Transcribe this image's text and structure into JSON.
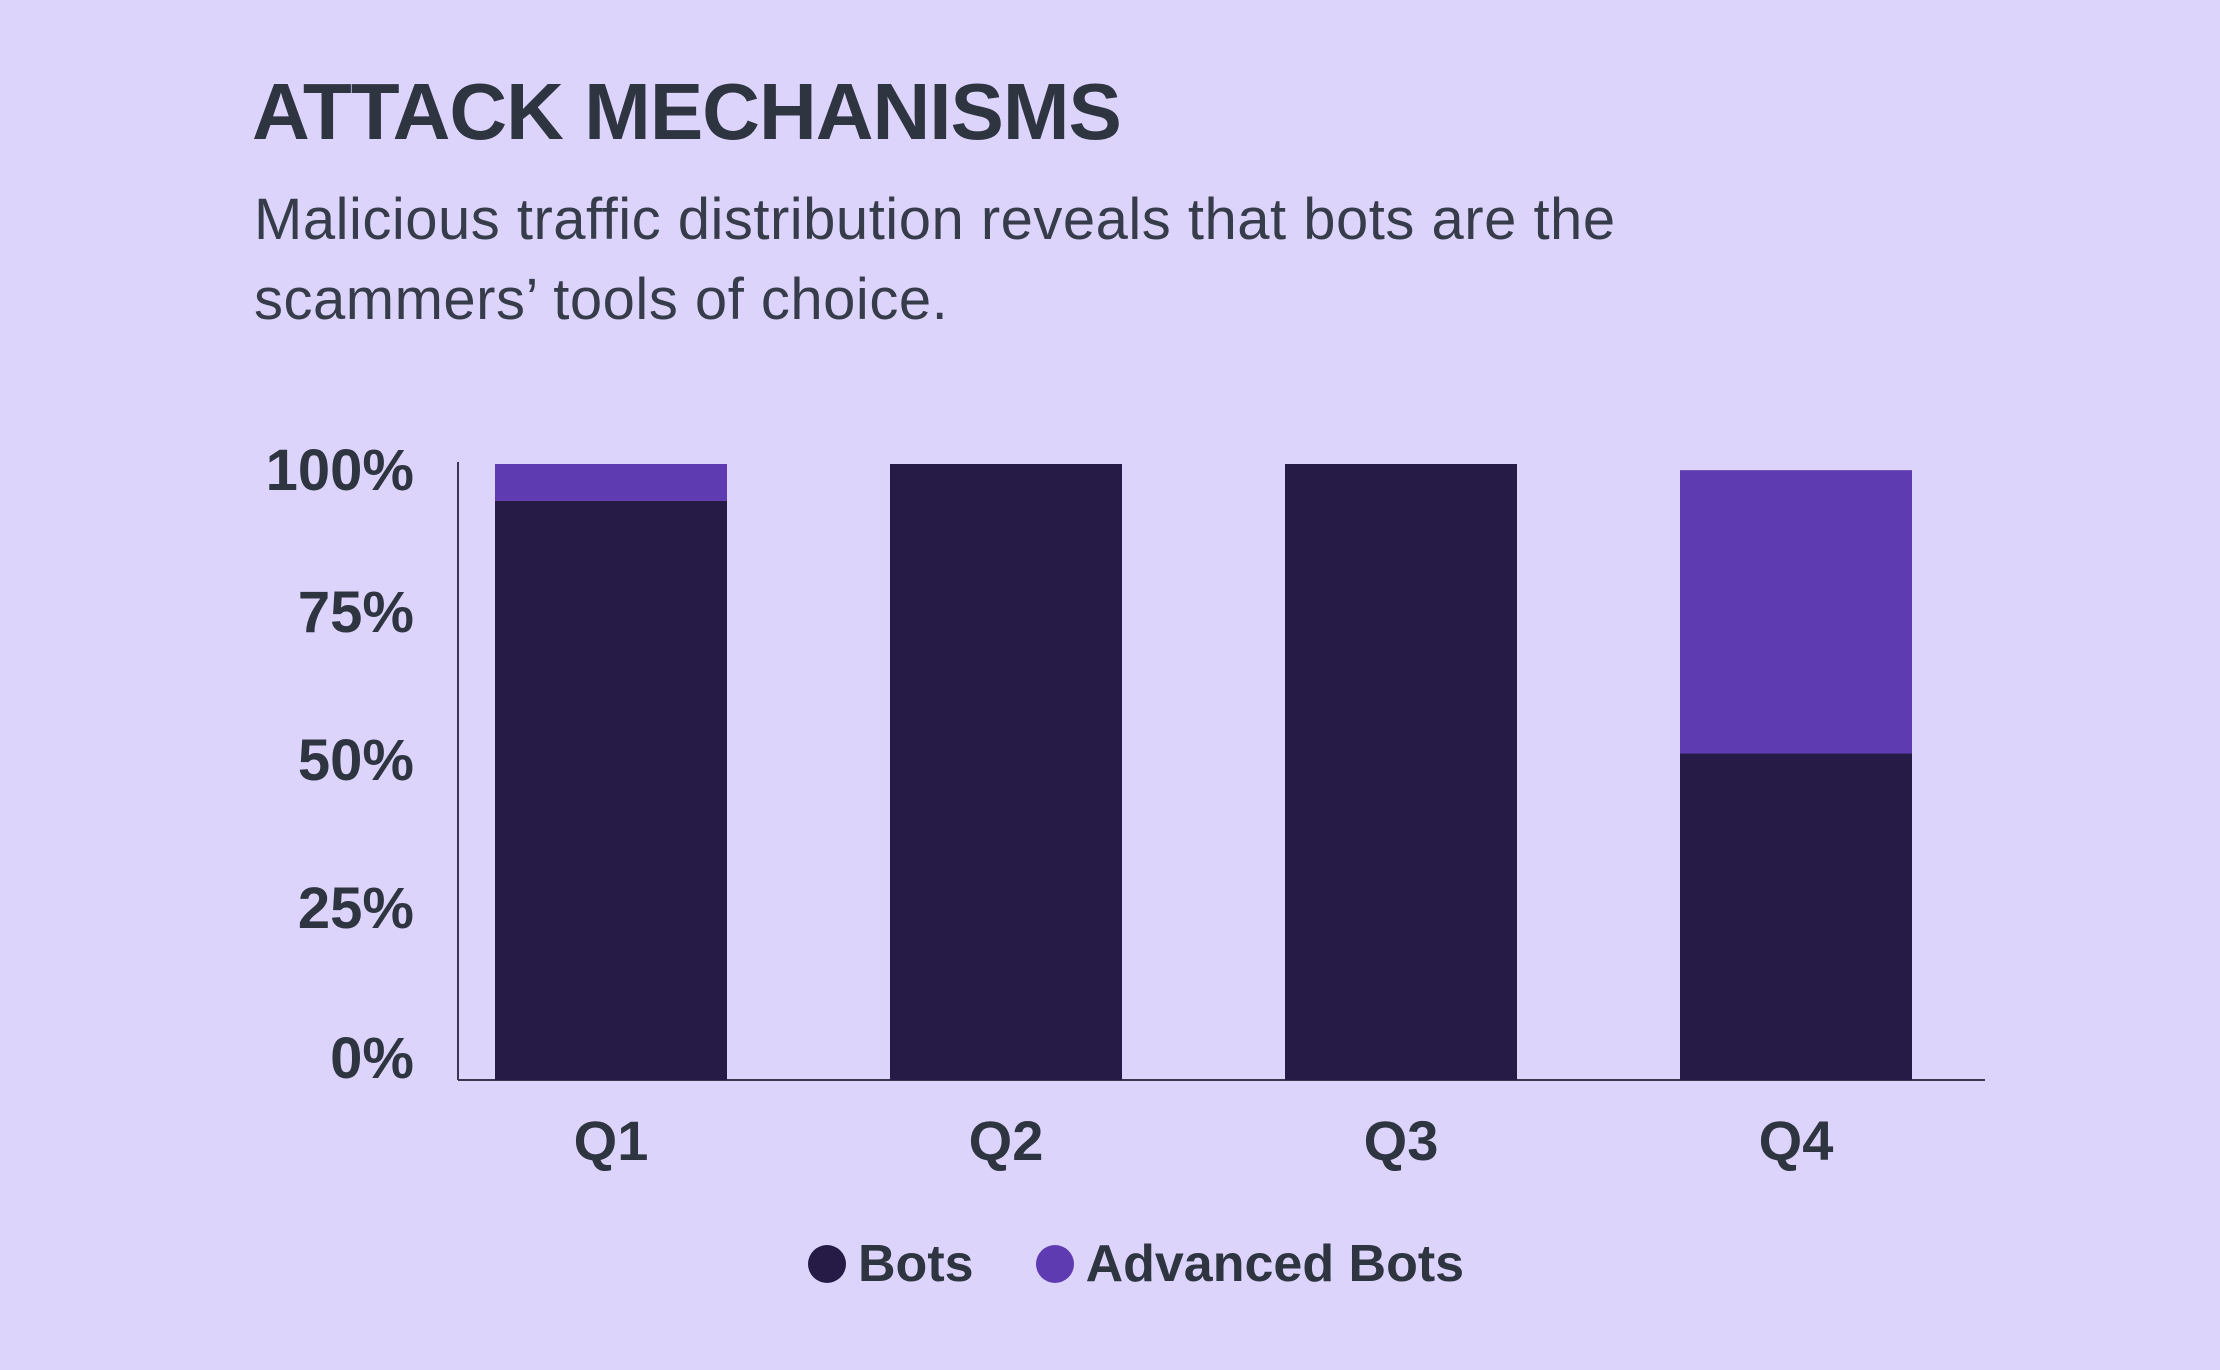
{
  "header": {
    "title": "ATTACK MECHANISMS",
    "subtitle": "Malicious traffic distribution reveals that bots are the scammers’ tools of choice."
  },
  "colors": {
    "background": "#ddd4fc",
    "bots": "#261b47",
    "advanced_bots": "#5e3bb0",
    "text": "#2e3541"
  },
  "legend": [
    {
      "label": "Bots",
      "color": "#261b47"
    },
    {
      "label": "Advanced Bots",
      "color": "#5e3bb0"
    }
  ],
  "chart_data": {
    "type": "bar",
    "stacked": true,
    "title": "ATTACK MECHANISMS",
    "xlabel": "",
    "ylabel": "",
    "categories": [
      "Q1",
      "Q2",
      "Q3",
      "Q4"
    ],
    "series": [
      {
        "name": "Bots",
        "values": [
          94,
          100,
          100,
          53
        ]
      },
      {
        "name": "Advanced Bots",
        "values": [
          6,
          0,
          0,
          46
        ]
      }
    ],
    "ylim": [
      0,
      100
    ],
    "yticks": [
      0,
      25,
      50,
      75,
      100
    ],
    "ytick_labels": [
      "0%",
      "25%",
      "50%",
      "75%",
      "100%"
    ],
    "grid": false,
    "legend_position": "bottom-center"
  }
}
